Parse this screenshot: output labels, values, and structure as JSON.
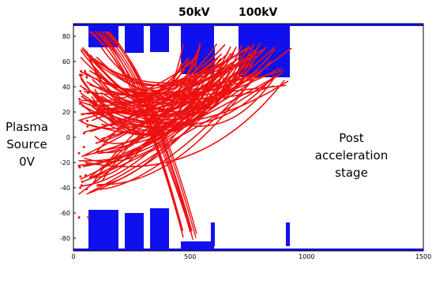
{
  "labels": {
    "kv_50": "50kV",
    "kv_100": "100kV",
    "source_line1": "Plasma",
    "source_line2": "Source",
    "source_line3": "0V",
    "post_line1": "Post",
    "post_line2": "acceleration",
    "post_line3": "stage"
  },
  "axes": {
    "x_range": [
      0,
      1500
    ],
    "y_range": [
      -90,
      90
    ],
    "x_ticks": [
      0,
      500,
      1000,
      1500
    ],
    "y_ticks": [
      80,
      60,
      40,
      20,
      0,
      -20,
      -40,
      -60,
      -80
    ]
  },
  "colors": {
    "electrodes": "#1010ee",
    "trajectories": "#ee1111",
    "frame": "#000000"
  }
}
